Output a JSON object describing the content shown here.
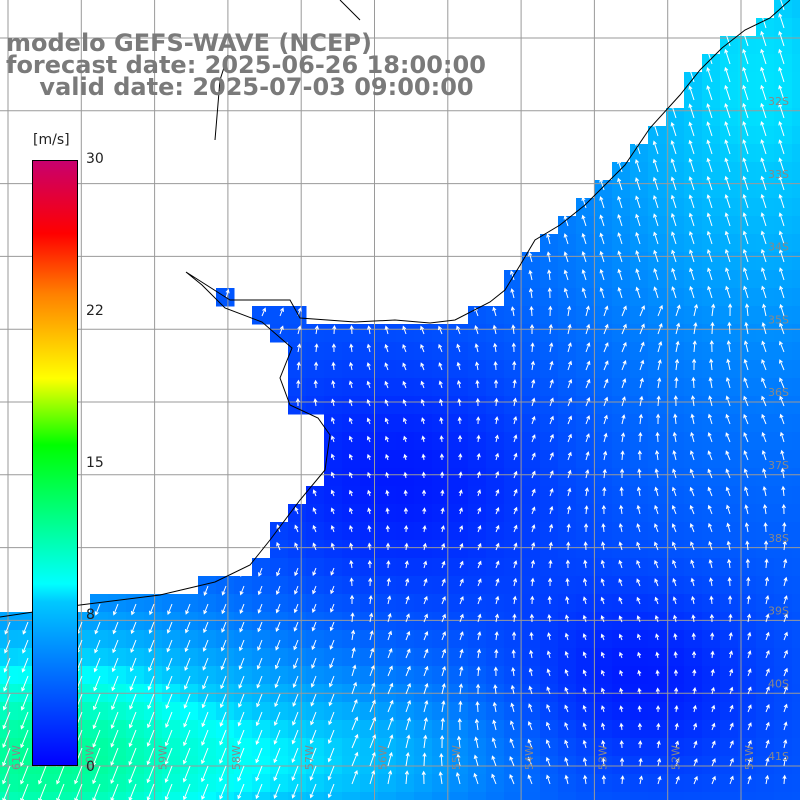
{
  "title_lines": [
    "modelo GEFS-WAVE (NCEP)",
    "forecast date: 2025-06-26 18:00:00",
    "    valid date: 2025-07-03 09:00:00"
  ],
  "colorbar": {
    "unit": "[m/s]",
    "ticks": [
      "30",
      "22",
      "15",
      "8",
      "0"
    ],
    "tick_values": [
      30,
      22,
      15,
      8,
      0
    ],
    "min": 0,
    "max": 30
  },
  "lat_labels": [
    "32S",
    "33S",
    "34S",
    "35S",
    "36S",
    "37S",
    "38S",
    "39S",
    "40S",
    "41S"
  ],
  "lon_labels": [
    "61W",
    "60W",
    "59W",
    "58W",
    "57W",
    "56W",
    "55W",
    "54W",
    "53W",
    "52W",
    "51W"
  ],
  "colors": {
    "land": "#ffffff",
    "grid": "#9a9a9a",
    "arrows": "#ffffff",
    "title": "#7a7a7a"
  }
}
